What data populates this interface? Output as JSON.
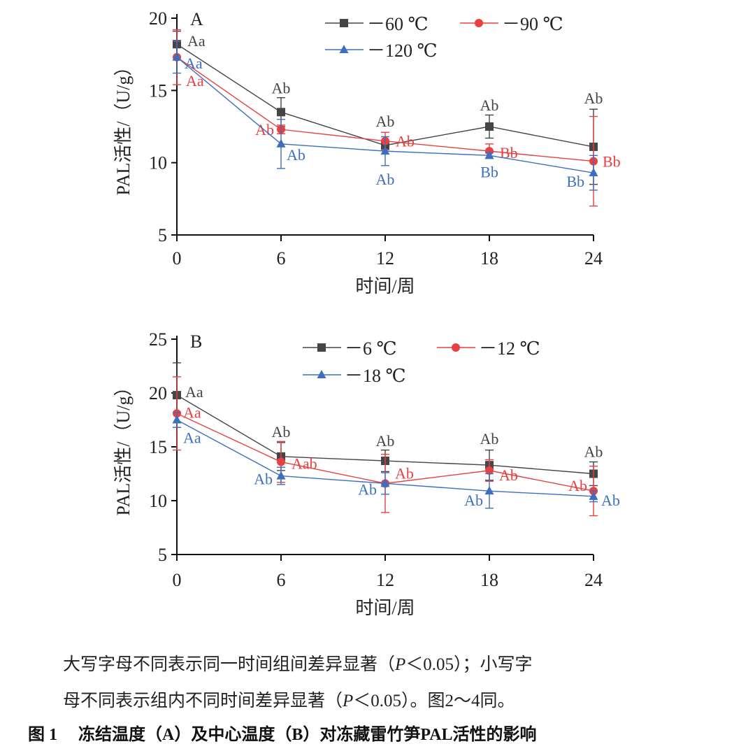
{
  "chart_data": [
    {
      "type": "line",
      "panel_label": "A",
      "xlabel": "时间/周",
      "ylabel": "PAL活性/（U/g）",
      "x": [
        0,
        6,
        12,
        18,
        24
      ],
      "xticks": [
        "0",
        "6",
        "12",
        "18",
        "24"
      ],
      "yticks": [
        "5",
        "10",
        "15",
        "20"
      ],
      "ylim": [
        5,
        20
      ],
      "grid": false,
      "legend_position": "top",
      "series": [
        {
          "name": "－60 ℃",
          "color": "#454545",
          "marker": "square",
          "values": [
            18.2,
            13.5,
            11.2,
            12.5,
            11.1
          ],
          "errors": [
            0.9,
            1.0,
            0.3,
            0.8,
            2.6
          ],
          "labels": [
            "Aa",
            "Ab",
            "Ab",
            "Ab",
            "Ab"
          ]
        },
        {
          "name": "－90 ℃",
          "color": "#e84141",
          "marker": "circle",
          "values": [
            17.3,
            12.3,
            11.5,
            10.8,
            10.1
          ],
          "errors": [
            1.9,
            0.3,
            0.6,
            0.5,
            3.1
          ],
          "labels": [
            "Aa",
            "Ab",
            "Ab",
            "Bb",
            "Bb"
          ]
        },
        {
          "name": "－120 ℃",
          "color": "#3c6fc0",
          "marker": "triangle",
          "values": [
            17.3,
            11.3,
            10.8,
            10.5,
            9.3
          ],
          "errors": [
            1.1,
            1.7,
            1.0,
            0.2,
            1.2
          ],
          "labels": [
            "Aa",
            "Ab",
            "Ab",
            "Bb",
            "Bb"
          ]
        }
      ]
    },
    {
      "type": "line",
      "panel_label": "B",
      "xlabel": "时间/周",
      "ylabel": "PAL活性/（U/g）",
      "x": [
        0,
        6,
        12,
        18,
        24
      ],
      "xticks": [
        "0",
        "6",
        "12",
        "18",
        "24"
      ],
      "yticks": [
        "5",
        "10",
        "15",
        "20",
        "25"
      ],
      "ylim": [
        5,
        25
      ],
      "grid": false,
      "legend_position": "top",
      "series": [
        {
          "name": "－6 ℃",
          "color": "#454545",
          "marker": "square",
          "values": [
            19.8,
            14.1,
            13.7,
            13.3,
            12.5
          ],
          "errors": [
            3.0,
            1.3,
            1.0,
            1.4,
            1.1
          ],
          "labels": [
            "Aa",
            "Ab",
            "Ab",
            "Ab",
            "Ab"
          ]
        },
        {
          "name": "－12 ℃",
          "color": "#e84141",
          "marker": "circle",
          "values": [
            18.1,
            13.6,
            11.6,
            12.8,
            10.9
          ],
          "errors": [
            3.4,
            1.9,
            2.7,
            1.0,
            2.3
          ],
          "labels": [
            "Aa",
            "Aab",
            "Ab",
            "Ab",
            "Ab"
          ]
        },
        {
          "name": "－18 ℃",
          "color": "#3c6fc0",
          "marker": "triangle",
          "values": [
            17.5,
            12.3,
            11.6,
            10.9,
            10.4
          ],
          "errors": [
            0.7,
            0.8,
            1.0,
            1.6,
            0.5
          ],
          "labels": [
            "Aa",
            "Ab",
            "Ab",
            "Ab",
            "Ab"
          ]
        }
      ]
    }
  ],
  "caption": {
    "line1_a": "大写字母不同表示同一时间组间差异显著（",
    "p": "P",
    "line1_b": "＜0.05）；小写字",
    "line2_a": "母不同表示组内不同时间差异显著（",
    "line2_b": "＜0.05）。图2～4同。",
    "title": "图 1　 冻结温度（A）及中心温度（B）对冻藏雷竹笋PAL活性的影响"
  }
}
